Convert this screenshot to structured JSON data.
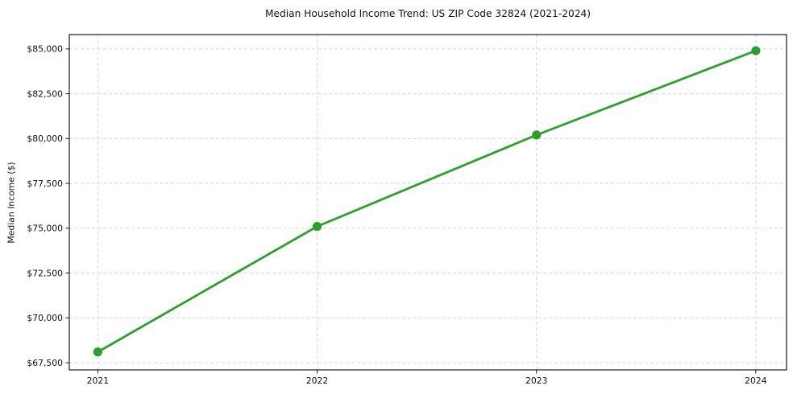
{
  "title": "Median Household Income Trend: US ZIP Code 32824 (2021-2024)",
  "chart_data": {
    "type": "line",
    "title": "Median Household Income Trend: US ZIP Code 32824 (2021-2024)",
    "xlabel": "",
    "ylabel": "Median Income ($)",
    "x": [
      2021,
      2022,
      2023,
      2024
    ],
    "values": [
      68100,
      75100,
      80200,
      84900
    ],
    "x_ticks": [
      2021,
      2022,
      2023,
      2024
    ],
    "x_tick_labels": [
      "2021",
      "2022",
      "2023",
      "2024"
    ],
    "y_ticks": [
      67500,
      70000,
      72500,
      75000,
      77500,
      80000,
      82500,
      85000
    ],
    "y_tick_labels": [
      "$67,500",
      "$70,000",
      "$72,500",
      "$75,000",
      "$77,500",
      "$80,000",
      "$82,500",
      "$85,000"
    ],
    "xlim": [
      2020.87,
      2024.14
    ],
    "ylim": [
      67100,
      85800
    ],
    "grid": true,
    "grid_style": "dashed",
    "legend": "none",
    "line_color": "#2ca02c",
    "grid_color": "#d6d6d6",
    "axis_color": "#1a1a1a",
    "marker": "circle"
  }
}
